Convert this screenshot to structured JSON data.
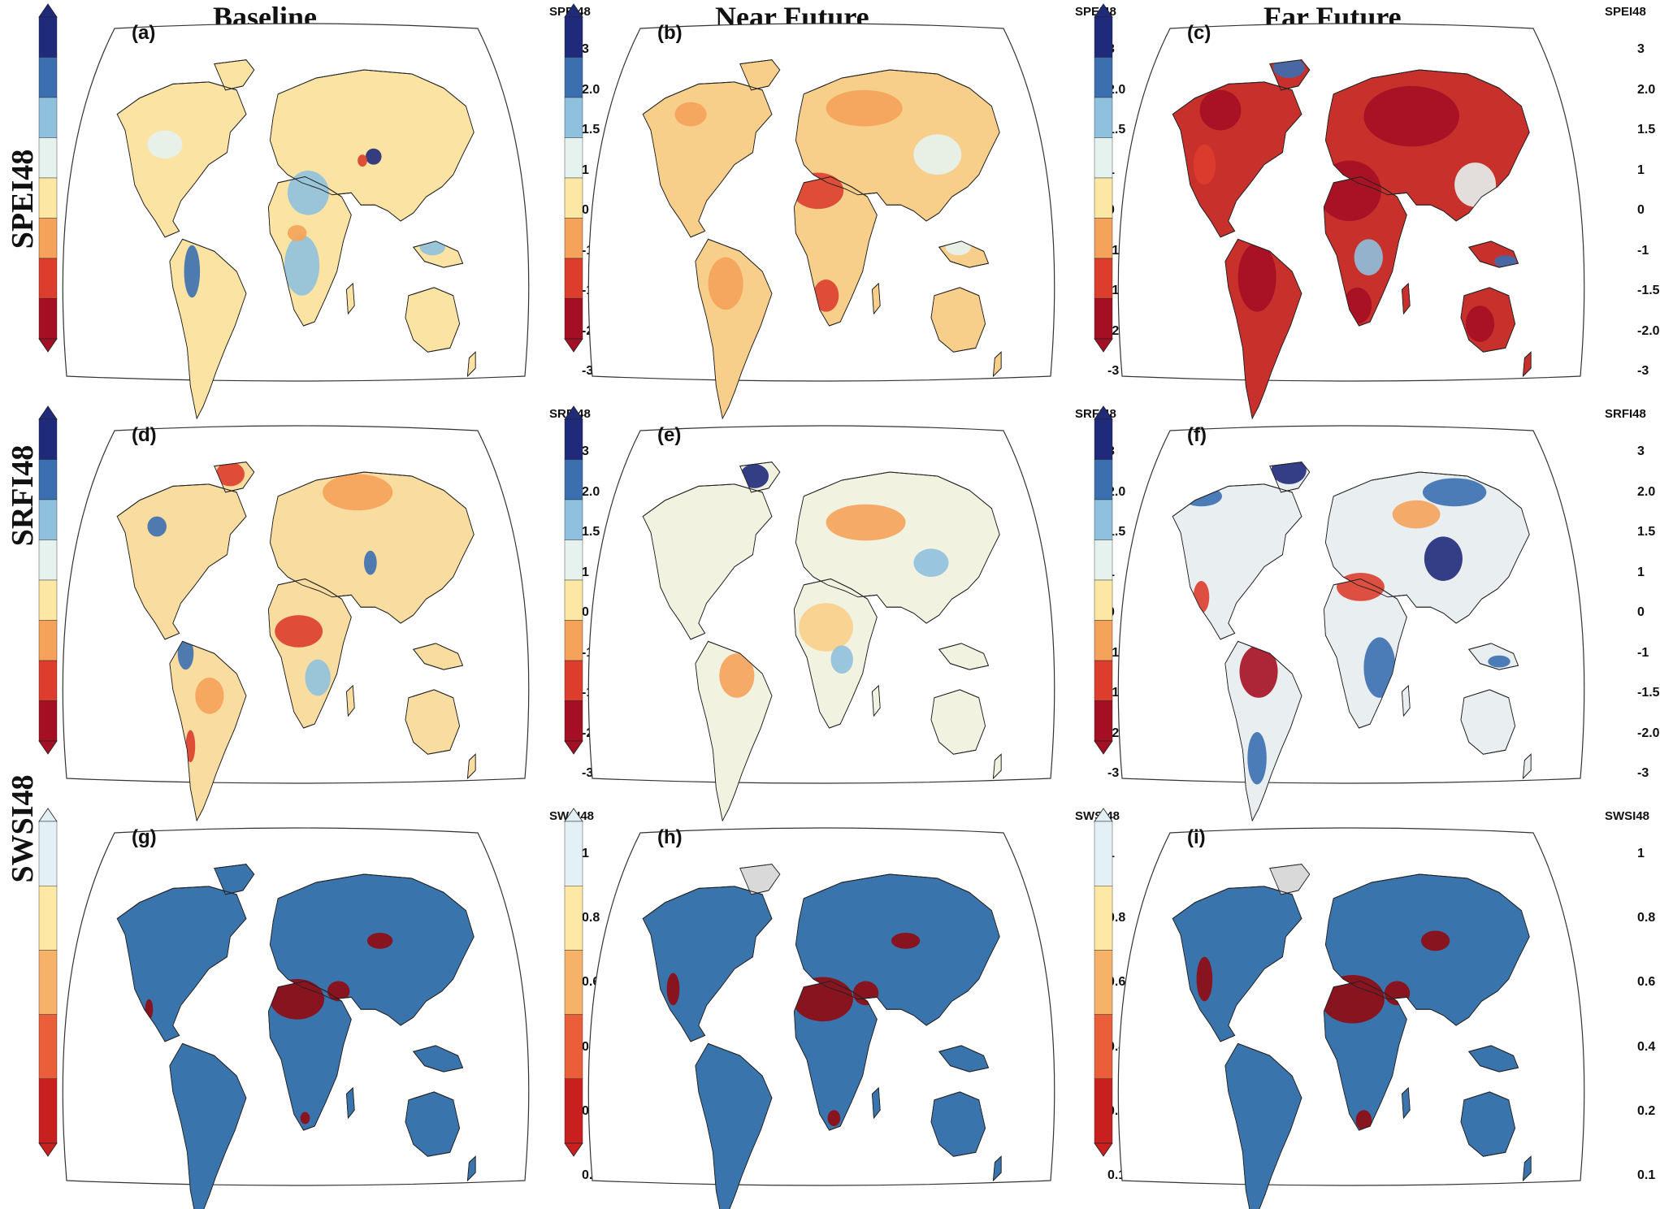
{
  "columns": [
    "Baseline",
    "Near Future",
    "Far Future"
  ],
  "rows": [
    "SPEI48",
    "SRFI48",
    "SWSI48"
  ],
  "panels": [
    {
      "label": "(a)",
      "index": "SPEI48",
      "scheme": "div",
      "row": 0,
      "col": 0,
      "scenario": "baseline"
    },
    {
      "label": "(b)",
      "index": "SPEI48",
      "scheme": "div",
      "row": 0,
      "col": 1,
      "scenario": "near"
    },
    {
      "label": "(c)",
      "index": "SPEI48",
      "scheme": "div",
      "row": 0,
      "col": 2,
      "scenario": "far"
    },
    {
      "label": "(d)",
      "index": "SRFI48",
      "scheme": "div",
      "row": 1,
      "col": 0,
      "scenario": "baseline"
    },
    {
      "label": "(e)",
      "index": "SRFI48",
      "scheme": "div",
      "row": 1,
      "col": 1,
      "scenario": "near"
    },
    {
      "label": "(f)",
      "index": "SRFI48",
      "scheme": "div",
      "row": 1,
      "col": 2,
      "scenario": "far"
    },
    {
      "label": "(g)",
      "index": "SWSI48",
      "scheme": "swsi",
      "row": 2,
      "col": 0,
      "scenario": "baseline"
    },
    {
      "label": "(h)",
      "index": "SWSI48",
      "scheme": "swsi",
      "row": 2,
      "col": 1,
      "scenario": "near"
    },
    {
      "label": "(i)",
      "index": "SWSI48",
      "scheme": "swsi",
      "row": 2,
      "col": 2,
      "scenario": "far"
    }
  ],
  "colorbars": {
    "div": {
      "ticks": [
        "3",
        "2.0",
        "1.5",
        "1",
        "0",
        "-1",
        "-1.5",
        "-2.0",
        "-3"
      ],
      "colors": [
        "#1f2a7a",
        "#3b6fb0",
        "#8fc1de",
        "#e6f2ee",
        "#fce7a5",
        "#f5a25a",
        "#dc3d2d",
        "#a50f24"
      ]
    },
    "swsi": {
      "ticks": [
        "1",
        "0.8",
        "0.6",
        "0.4",
        "0.2",
        "0.1"
      ],
      "colors": [
        "#e3f1f6",
        "#fde9a5",
        "#f7b26a",
        "#ea5e3a",
        "#c8201f"
      ]
    }
  },
  "land_colors": {
    "div_baseline": "#fbe3a3",
    "div_near": "#f8cf8a",
    "div_far": "#c8302c",
    "srfi_baseline": "#f8dca0",
    "srfi_near": "#f2f2e0",
    "srfi_far": "#e9eef0",
    "swsi": "#3a74ad",
    "hot": "#8b0f16"
  }
}
